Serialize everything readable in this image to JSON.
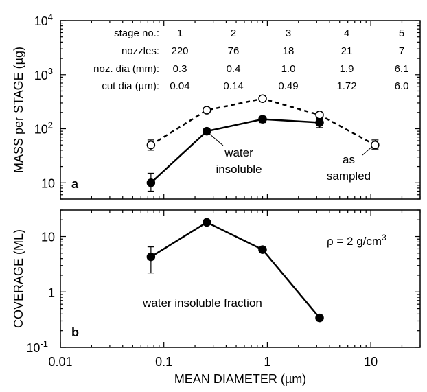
{
  "chart_data": [
    {
      "type": "scatter",
      "panel_label": "a",
      "xscale": "log",
      "yscale": "log",
      "xlim": [
        0.01,
        30
      ],
      "ylim": [
        5,
        10000
      ],
      "ylabel": "MASS per STAGE (µg)",
      "x_ticks": [
        {
          "v": 0.01,
          "label": "0.01"
        },
        {
          "v": 0.1,
          "label": "0.1"
        },
        {
          "v": 1,
          "label": "1"
        },
        {
          "v": 10,
          "label": "10"
        }
      ],
      "y_ticks": [
        {
          "v": 10,
          "label": "10",
          "sup": ""
        },
        {
          "v": 100,
          "label": "10",
          "sup": "2"
        },
        {
          "v": 1000,
          "label": "10",
          "sup": "3"
        },
        {
          "v": 10000,
          "label": "10",
          "sup": "4"
        }
      ],
      "series": [
        {
          "annotation": [
            "as",
            "sampled"
          ],
          "marker": "open-circle",
          "line": "dashed",
          "x": [
            0.075,
            0.26,
            0.9,
            3.2,
            11
          ],
          "y": [
            50,
            220,
            360,
            180,
            50
          ],
          "err_low": [
            40,
            200,
            330,
            160,
            42
          ],
          "err_high": [
            62,
            245,
            385,
            200,
            62
          ]
        },
        {
          "annotation": [
            "water",
            "insoluble"
          ],
          "marker": "filled-circle",
          "line": "solid",
          "x": [
            0.075,
            0.26,
            0.9,
            3.2
          ],
          "y": [
            10,
            90,
            150,
            130
          ],
          "err_low": [
            7,
            80,
            130,
            105
          ],
          "err_high": [
            15,
            102,
            170,
            155
          ]
        }
      ],
      "table": {
        "rows": [
          {
            "label": "stage no.:",
            "values": [
              "1",
              "2",
              "3",
              "4",
              "5"
            ]
          },
          {
            "label": "nozzles:",
            "values": [
              "220",
              "76",
              "18",
              "21",
              "7"
            ]
          },
          {
            "label": "noz. dia (mm):",
            "values": [
              "0.3",
              "0.4",
              "1.0",
              "1.9",
              "6.1"
            ]
          },
          {
            "label": "cut dia (µm):",
            "values": [
              "0.04",
              "0.14",
              "0.49",
              "1.72",
              "6.0"
            ]
          }
        ]
      }
    },
    {
      "type": "line",
      "panel_label": "b",
      "xscale": "log",
      "yscale": "log",
      "xlim": [
        0.01,
        30
      ],
      "ylim": [
        0.1,
        30
      ],
      "xlabel": "MEAN DIAMETER (µm)",
      "ylabel": "COVERAGE (ML)",
      "x_ticks": [
        {
          "v": 0.01,
          "label": "0.01"
        },
        {
          "v": 0.1,
          "label": "0.1"
        },
        {
          "v": 1,
          "label": "1"
        },
        {
          "v": 10,
          "label": "10"
        }
      ],
      "y_ticks": [
        {
          "v": 0.1,
          "label": "10",
          "sup": "-1"
        },
        {
          "v": 1,
          "label": "1",
          "sup": ""
        },
        {
          "v": 10,
          "label": "10",
          "sup": ""
        }
      ],
      "series": [
        {
          "marker": "filled-circle",
          "line": "solid",
          "x": [
            0.075,
            0.26,
            0.9,
            3.2
          ],
          "y": [
            4.3,
            18,
            5.8,
            0.34
          ],
          "err_low": [
            2.2,
            16.5,
            5.2,
            0.3
          ],
          "err_high": [
            6.5,
            19.5,
            6.4,
            0.38
          ]
        }
      ],
      "annotations": {
        "fraction": "water insoluble fraction",
        "density": "ρ = 2 g/cm",
        "density_sup": "3"
      }
    }
  ]
}
